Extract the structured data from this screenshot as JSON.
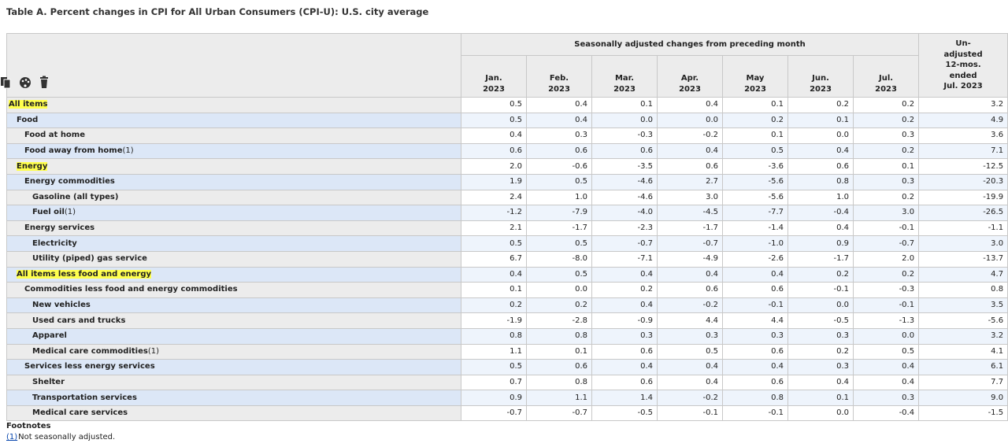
{
  "header": {
    "title": "Table A. Percent changes in CPI for All Urban Consumers (CPI-U): U.S. city average"
  },
  "table": {
    "group_header": "Seasonally adjusted changes from preceding month",
    "columns": [
      [
        "Jan.",
        "2023"
      ],
      [
        "Feb.",
        "2023"
      ],
      [
        "Mar.",
        "2023"
      ],
      [
        "Apr.",
        "2023"
      ],
      [
        "May",
        "2023"
      ],
      [
        "Jun.",
        "2023"
      ],
      [
        "Jul.",
        "2023"
      ]
    ],
    "last_column": [
      "Un-",
      "adjusted",
      "12-mos.",
      "ended",
      "Jul. 2023"
    ],
    "rows": [
      {
        "label": "All items",
        "level": 0,
        "highlight": true,
        "values": [
          "0.5",
          "0.4",
          "0.1",
          "0.4",
          "0.1",
          "0.2",
          "0.2",
          "3.2"
        ]
      },
      {
        "label": "Food",
        "level": 1,
        "values": [
          "0.5",
          "0.4",
          "0.0",
          "0.0",
          "0.2",
          "0.1",
          "0.2",
          "4.9"
        ]
      },
      {
        "label": "Food at home",
        "level": 2,
        "values": [
          "0.4",
          "0.3",
          "-0.3",
          "-0.2",
          "0.1",
          "0.0",
          "0.3",
          "3.6"
        ]
      },
      {
        "label": "Food away from home",
        "note": "(1)",
        "level": 2,
        "values": [
          "0.6",
          "0.6",
          "0.6",
          "0.4",
          "0.5",
          "0.4",
          "0.2",
          "7.1"
        ]
      },
      {
        "label": "Energy",
        "level": 1,
        "highlight": true,
        "values": [
          "2.0",
          "-0.6",
          "-3.5",
          "0.6",
          "-3.6",
          "0.6",
          "0.1",
          "-12.5"
        ]
      },
      {
        "label": "Energy commodities",
        "level": 2,
        "values": [
          "1.9",
          "0.5",
          "-4.6",
          "2.7",
          "-5.6",
          "0.8",
          "0.3",
          "-20.3"
        ]
      },
      {
        "label": "Gasoline (all types)",
        "level": 3,
        "values": [
          "2.4",
          "1.0",
          "-4.6",
          "3.0",
          "-5.6",
          "1.0",
          "0.2",
          "-19.9"
        ]
      },
      {
        "label": "Fuel oil",
        "note": "(1)",
        "level": 3,
        "values": [
          "-1.2",
          "-7.9",
          "-4.0",
          "-4.5",
          "-7.7",
          "-0.4",
          "3.0",
          "-26.5"
        ]
      },
      {
        "label": "Energy services",
        "level": 2,
        "values": [
          "2.1",
          "-1.7",
          "-2.3",
          "-1.7",
          "-1.4",
          "0.4",
          "-0.1",
          "-1.1"
        ]
      },
      {
        "label": "Electricity",
        "level": 3,
        "values": [
          "0.5",
          "0.5",
          "-0.7",
          "-0.7",
          "-1.0",
          "0.9",
          "-0.7",
          "3.0"
        ]
      },
      {
        "label": "Utility (piped) gas service",
        "level": 3,
        "values": [
          "6.7",
          "-8.0",
          "-7.1",
          "-4.9",
          "-2.6",
          "-1.7",
          "2.0",
          "-13.7"
        ]
      },
      {
        "label": "All items less food and energy",
        "level": 1,
        "highlight": true,
        "values": [
          "0.4",
          "0.5",
          "0.4",
          "0.4",
          "0.4",
          "0.2",
          "0.2",
          "4.7"
        ]
      },
      {
        "label": "Commodities less food and energy commodities",
        "level": 2,
        "values": [
          "0.1",
          "0.0",
          "0.2",
          "0.6",
          "0.6",
          "-0.1",
          "-0.3",
          "0.8"
        ]
      },
      {
        "label": "New vehicles",
        "level": 3,
        "values": [
          "0.2",
          "0.2",
          "0.4",
          "-0.2",
          "-0.1",
          "0.0",
          "-0.1",
          "3.5"
        ]
      },
      {
        "label": "Used cars and trucks",
        "level": 3,
        "values": [
          "-1.9",
          "-2.8",
          "-0.9",
          "4.4",
          "4.4",
          "-0.5",
          "-1.3",
          "-5.6"
        ]
      },
      {
        "label": "Apparel",
        "level": 3,
        "values": [
          "0.8",
          "0.8",
          "0.3",
          "0.3",
          "0.3",
          "0.3",
          "0.0",
          "3.2"
        ]
      },
      {
        "label": "Medical care commodities",
        "note": "(1)",
        "level": 3,
        "values": [
          "1.1",
          "0.1",
          "0.6",
          "0.5",
          "0.6",
          "0.2",
          "0.5",
          "4.1"
        ]
      },
      {
        "label": "Services less energy services",
        "level": 2,
        "values": [
          "0.5",
          "0.6",
          "0.4",
          "0.4",
          "0.4",
          "0.3",
          "0.4",
          "6.1"
        ]
      },
      {
        "label": "Shelter",
        "level": 3,
        "values": [
          "0.7",
          "0.8",
          "0.6",
          "0.4",
          "0.6",
          "0.4",
          "0.4",
          "7.7"
        ]
      },
      {
        "label": "Transportation services",
        "level": 3,
        "values": [
          "0.9",
          "1.1",
          "1.4",
          "-0.2",
          "0.8",
          "0.1",
          "0.3",
          "9.0"
        ]
      },
      {
        "label": "Medical care services",
        "level": 3,
        "values": [
          "-0.7",
          "-0.7",
          "-0.5",
          "-0.1",
          "-0.1",
          "0.0",
          "-0.4",
          "-1.5"
        ]
      }
    ]
  },
  "footnotes": {
    "heading": "Footnotes",
    "items": [
      {
        "marker": "(1)",
        "text": "Not seasonally adjusted."
      }
    ]
  }
}
